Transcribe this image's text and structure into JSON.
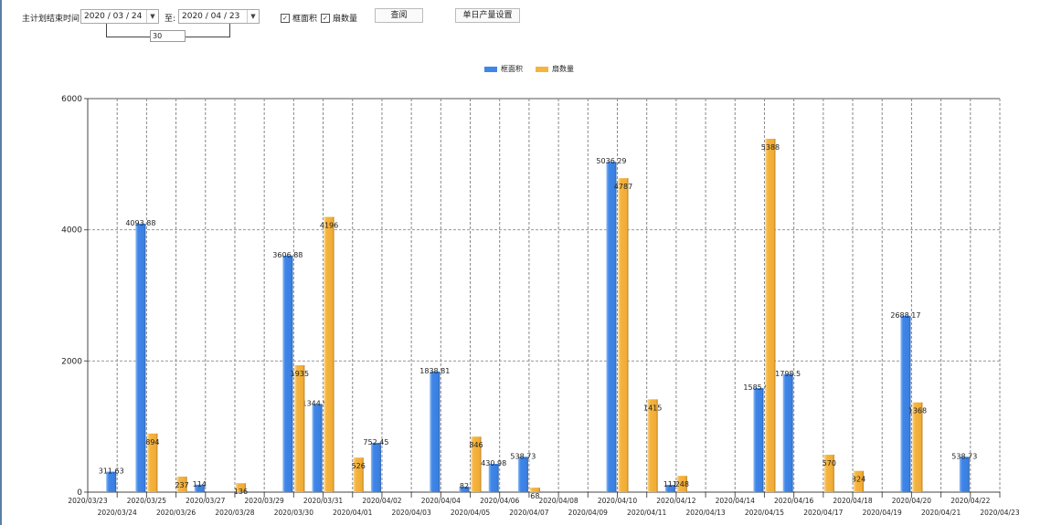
{
  "toolbar": {
    "end_time_label": "主计划结束时间:",
    "start_date": "2020 / 03 / 24",
    "to_label": "至:",
    "end_date": "2020 / 04 / 23",
    "days": "30",
    "check_area": {
      "label": "框面积",
      "checked": true
    },
    "check_count": {
      "label": "扇数量",
      "checked": true
    },
    "query_button": "查阅",
    "daily_output_button": "单日产量设置"
  },
  "chart_data": {
    "type": "bar",
    "legend_position": "top-center",
    "grid": true,
    "ylim": [
      0,
      6000
    ],
    "yticks": [
      "0",
      "2000",
      "4000",
      "6000"
    ],
    "categories": [
      "2020/03/23",
      "2020/03/24",
      "2020/03/25",
      "2020/03/26",
      "2020/03/27",
      "2020/03/28",
      "2020/03/29",
      "2020/03/30",
      "2020/03/31",
      "2020/04/01",
      "2020/04/02",
      "2020/04/03",
      "2020/04/04",
      "2020/04/05",
      "2020/04/06",
      "2020/04/07",
      "2020/04/08",
      "2020/04/09",
      "2020/04/10",
      "2020/04/11",
      "2020/04/12",
      "2020/04/13",
      "2020/04/14",
      "2020/04/15",
      "2020/04/16",
      "2020/04/17",
      "2020/04/18",
      "2020/04/19",
      "2020/04/20",
      "2020/04/21",
      "2020/04/22",
      "2020/04/23"
    ],
    "series": [
      {
        "name": "框面积",
        "color": "#3f86e8",
        "values": [
          null,
          311.63,
          4093.88,
          null,
          114,
          null,
          null,
          3606.88,
          1344.95,
          null,
          752.45,
          null,
          1838.81,
          82,
          430.98,
          538.73,
          null,
          null,
          5036.29,
          null,
          111,
          null,
          null,
          1585.96,
          1798.5,
          null,
          null,
          null,
          2688.17,
          null,
          538.73,
          null
        ]
      },
      {
        "name": "扇数量",
        "color": "#f5b43e",
        "values": [
          null,
          null,
          894,
          237,
          null,
          136,
          null,
          1935,
          4196,
          526,
          null,
          null,
          null,
          846,
          null,
          68,
          null,
          null,
          4787,
          1415,
          248,
          null,
          null,
          5388,
          null,
          570,
          324,
          null,
          1368,
          null,
          null,
          null
        ]
      }
    ]
  }
}
